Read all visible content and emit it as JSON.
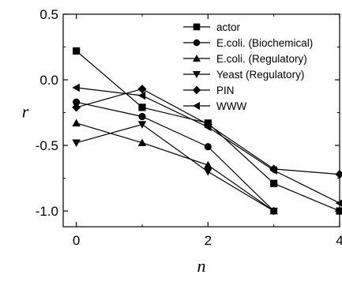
{
  "chart_data": {
    "type": "line",
    "title": "",
    "xlabel": "n",
    "ylabel": "r",
    "xlim": [
      -0.2,
      4.0
    ],
    "ylim": [
      -1.12,
      0.5
    ],
    "xticks": [
      0,
      2,
      4
    ],
    "xtick_labels": [
      "0",
      "2",
      "4"
    ],
    "yticks": [
      0.5,
      0.0,
      -0.5,
      -1.0
    ],
    "ytick_labels": [
      "0.5",
      "0.0",
      "-0.5",
      "-1.0"
    ],
    "grid": false,
    "legend_position": "top-right",
    "series": [
      {
        "name": "actor",
        "marker": "square",
        "x": [
          0,
          1,
          2,
          3,
          4
        ],
        "y": [
          0.22,
          -0.21,
          -0.33,
          -0.79,
          -1.0
        ]
      },
      {
        "name": "E.coli. (Biochemical)",
        "marker": "circle",
        "x": [
          0,
          1,
          2,
          3
        ],
        "y": [
          -0.17,
          -0.28,
          -0.51,
          -1.0
        ]
      },
      {
        "name": "E.coli. (Regulatory)",
        "marker": "triangle-up",
        "x": [
          0,
          1,
          2,
          3
        ],
        "y": [
          -0.33,
          -0.48,
          -0.65,
          -1.0
        ]
      },
      {
        "name": "Yeast (Regulatory)",
        "marker": "triangle-down",
        "x": [
          0,
          1,
          2,
          3
        ],
        "y": [
          -0.48,
          -0.34,
          -0.7,
          -1.0
        ]
      },
      {
        "name": "PIN",
        "marker": "diamond",
        "x": [
          0,
          1,
          2,
          3,
          4
        ],
        "y": [
          -0.21,
          -0.07,
          -0.34,
          -0.68,
          -0.72
        ]
      },
      {
        "name": "WWW",
        "marker": "triangle-left",
        "x": [
          0,
          1,
          2,
          3,
          4
        ],
        "y": [
          -0.06,
          -0.12,
          -0.36,
          -0.69,
          -0.94
        ]
      }
    ]
  }
}
